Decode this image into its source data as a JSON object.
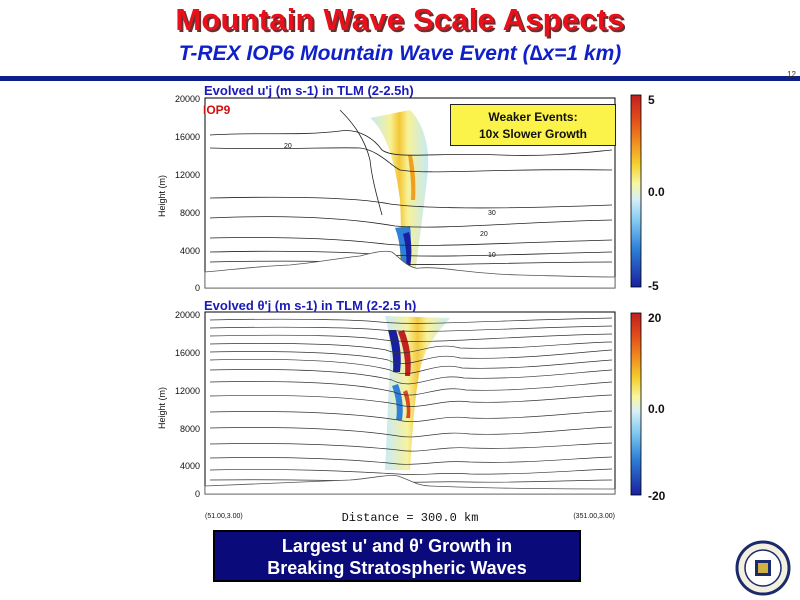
{
  "slide": {
    "title": "Mountain Wave Scale Aspects",
    "subtitle": "T-REX IOP6 Mountain Wave Event (∆x=1 km)",
    "page_number": "12"
  },
  "panel_top": {
    "title": "Evolved u'j (m s-1) in TLM (2-2.5h)",
    "iop_label": "IOP9",
    "note_line1": "Weaker Events:",
    "note_line2": "10x Slower Growth",
    "y_ticks": [
      "20000",
      "16000",
      "12000",
      "8000",
      "4000",
      "0"
    ],
    "y_label": "Height (m)",
    "colorbar_labels": [
      "5",
      "0.0",
      "-5"
    ],
    "contour_labels": [
      "20",
      "30",
      "20",
      "10"
    ]
  },
  "panel_bottom": {
    "title": "Evolved θ'j (m s-1) in TLM (2-2.5 h)",
    "y_ticks": [
      "20000",
      "16000",
      "12000",
      "8000",
      "4000",
      "0"
    ],
    "y_label": "Height (m)",
    "colorbar_labels": [
      "20",
      "0.0",
      "-20"
    ],
    "x_label": "Distance = 300.0 km",
    "corner_left": "(51.00,3.00)",
    "corner_right": "(351.00,3.00)"
  },
  "bottom_box": {
    "line1": "Largest u' and θ' Growth in",
    "line2": "Breaking Stratospheric Waves"
  },
  "colors": {
    "title_red": "#e8101a",
    "subtitle_blue": "#1020c8",
    "rule_blue": "#0d1f8a",
    "note_yellow": "#fbf34a",
    "box_navy": "#0a0a7a"
  }
}
